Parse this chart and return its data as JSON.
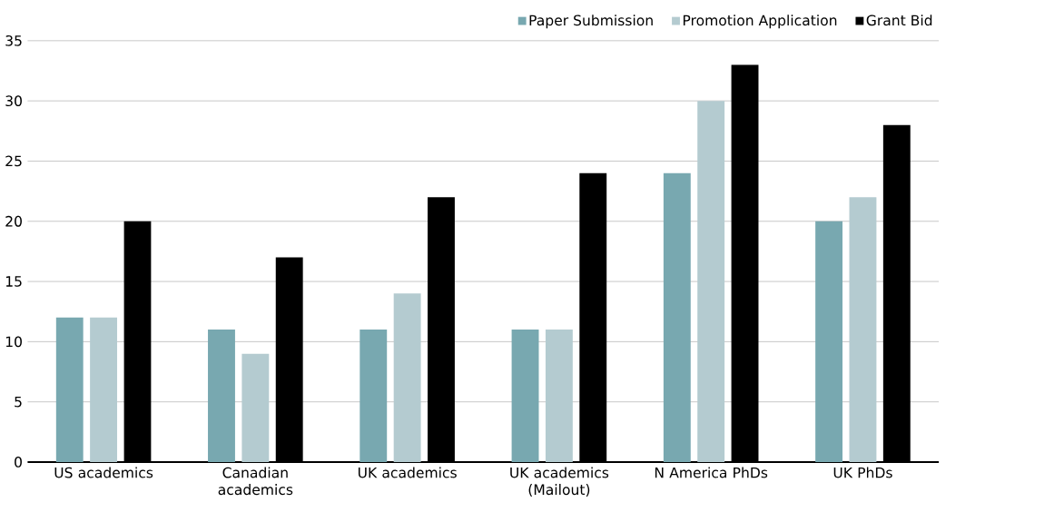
{
  "chart_data": {
    "type": "bar",
    "categories": [
      "US academics",
      "Canadian academics",
      "UK academics",
      "UK academics (Mailout)",
      "N America PhDs",
      "UK PhDs"
    ],
    "series": [
      {
        "name": "Paper Submission",
        "color": "#78a8b0",
        "values": [
          12,
          11,
          11,
          11,
          24,
          20
        ]
      },
      {
        "name": "Promotion Application",
        "color": "#b4cbd0",
        "values": [
          12,
          9,
          14,
          11,
          30,
          22
        ]
      },
      {
        "name": "Grant Bid",
        "color": "#000000",
        "values": [
          20,
          17,
          22,
          24,
          33,
          28
        ]
      }
    ],
    "ylim": [
      0,
      35
    ],
    "yticks": [
      0,
      5,
      10,
      15,
      20,
      25,
      30,
      35
    ],
    "grid": "y",
    "legend": "top right"
  }
}
